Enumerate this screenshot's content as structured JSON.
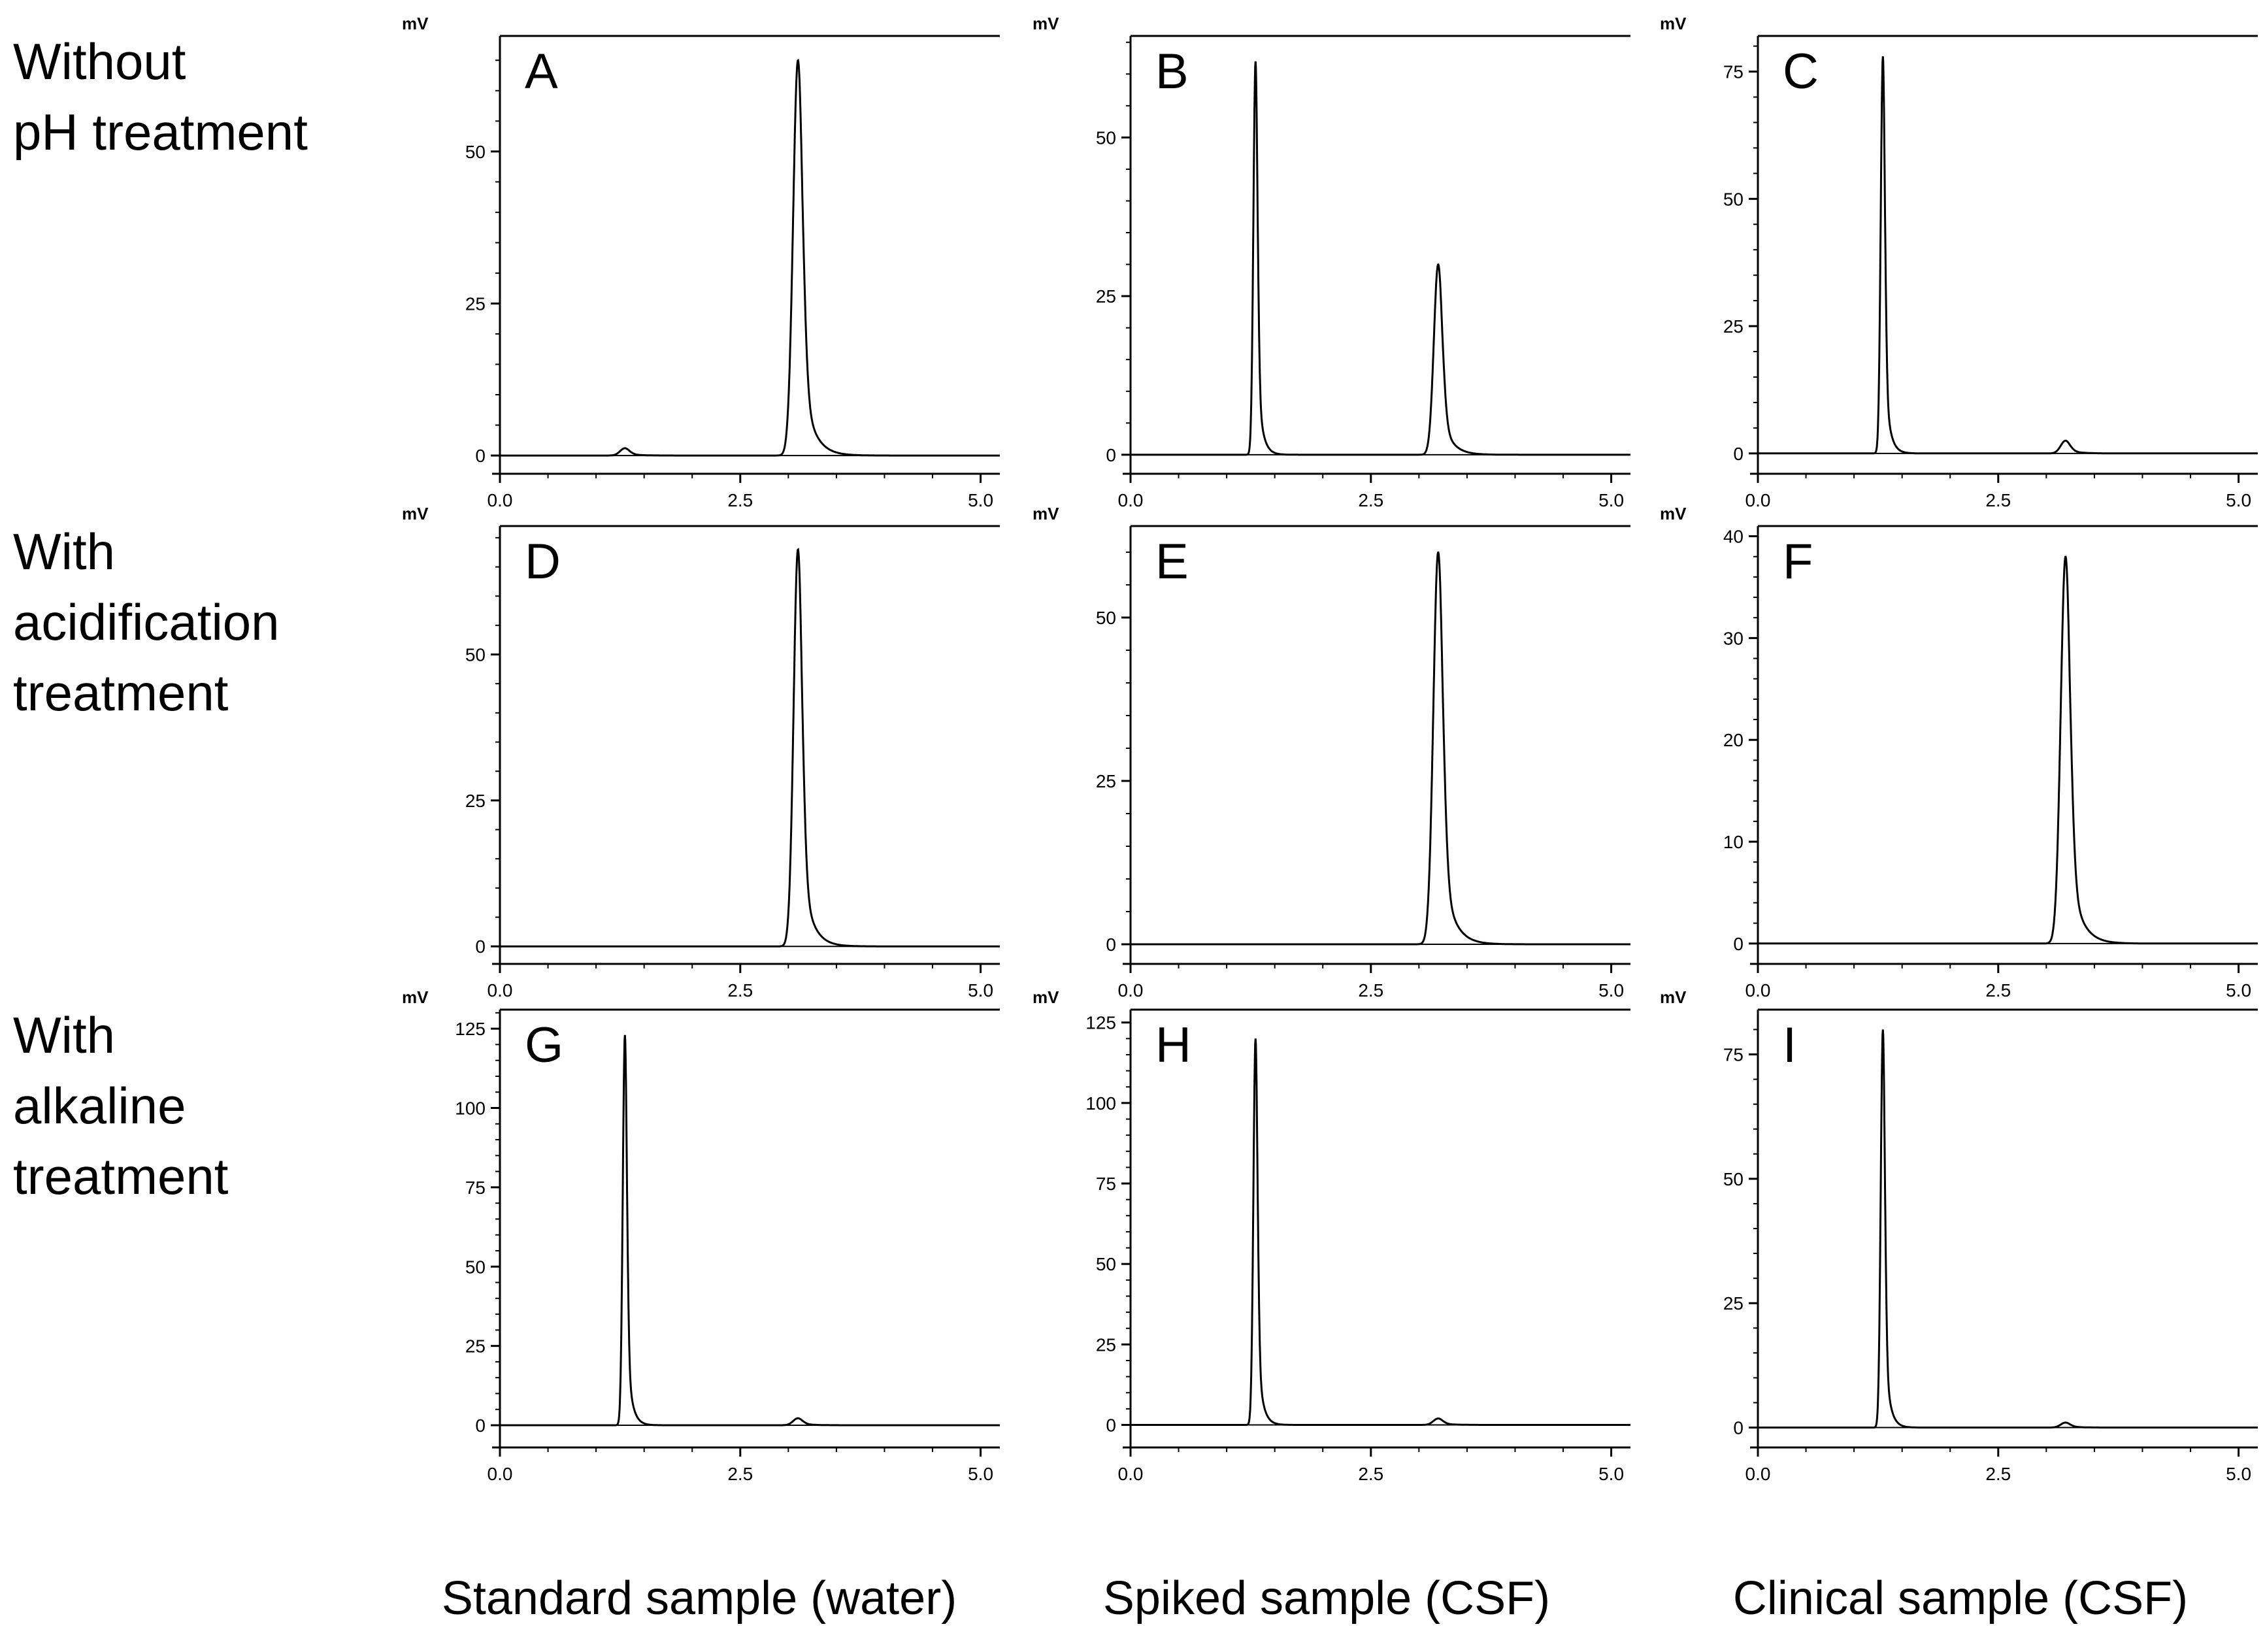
{
  "row_labels": [
    "Without\npH treatment",
    "With\nacidification\ntreatment",
    "With\nalkaline\ntreatment"
  ],
  "column_labels": [
    "Standard sample (water)",
    "Spiked sample (CSF)",
    "Clinical sample (CSF)"
  ],
  "chart_data": [
    {
      "panel": "A",
      "type": "line",
      "ylabel": "mV",
      "ymax": 65,
      "ylim": [
        -3,
        69
      ],
      "yticks": [
        0,
        25,
        50
      ],
      "xticks": [
        "0.0",
        "2.5",
        "5.0"
      ],
      "xlim": [
        0,
        5.2
      ],
      "peaks": [
        {
          "t": 1.3,
          "h": 1.2,
          "w": 0.05
        },
        {
          "t": 3.1,
          "h": 65,
          "w": 0.05
        }
      ]
    },
    {
      "panel": "B",
      "type": "line",
      "ylabel": "mV",
      "ymax": 62,
      "ylim": [
        -3,
        66
      ],
      "yticks": [
        0,
        25,
        50
      ],
      "xticks": [
        "0.0",
        "2.5",
        "5.0"
      ],
      "xlim": [
        0,
        5.2
      ],
      "peaks": [
        {
          "t": 1.3,
          "h": 62,
          "w": 0.022
        },
        {
          "t": 3.2,
          "h": 30,
          "w": 0.045
        }
      ]
    },
    {
      "panel": "C",
      "type": "line",
      "ylabel": "mV",
      "ymax": 78,
      "ylim": [
        -4,
        82
      ],
      "yticks": [
        0,
        25,
        50,
        75
      ],
      "xticks": [
        "0.0",
        "2.5",
        "5.0"
      ],
      "xlim": [
        0,
        5.2
      ],
      "peaks": [
        {
          "t": 1.3,
          "h": 78,
          "w": 0.022
        },
        {
          "t": 3.2,
          "h": 2.5,
          "w": 0.05
        }
      ]
    },
    {
      "panel": "D",
      "type": "line",
      "ylabel": "mV",
      "ymax": 68,
      "ylim": [
        -3,
        72
      ],
      "yticks": [
        0,
        25,
        50
      ],
      "xticks": [
        "0.0",
        "2.5",
        "5.0"
      ],
      "xlim": [
        0,
        5.2
      ],
      "peaks": [
        {
          "t": 3.1,
          "h": 68,
          "w": 0.045
        }
      ]
    },
    {
      "panel": "E",
      "type": "line",
      "ylabel": "mV",
      "ymax": 60,
      "ylim": [
        -3,
        64
      ],
      "yticks": [
        0,
        25,
        50
      ],
      "xticks": [
        "0.0",
        "2.5",
        "5.0"
      ],
      "xlim": [
        0,
        5.2
      ],
      "peaks": [
        {
          "t": 3.2,
          "h": 60,
          "w": 0.05
        }
      ]
    },
    {
      "panel": "F",
      "type": "line",
      "ylabel": "mV",
      "ymax": 38,
      "ylim": [
        -2,
        41
      ],
      "yticks": [
        0,
        10,
        20,
        30,
        40
      ],
      "xticks": [
        "0.0",
        "2.5",
        "5.0"
      ],
      "xlim": [
        0,
        5.2
      ],
      "peaks": [
        {
          "t": 3.2,
          "h": 38,
          "w": 0.05
        }
      ]
    },
    {
      "panel": "G",
      "type": "line",
      "ylabel": "mV",
      "ymax": 123,
      "ylim": [
        -7,
        131
      ],
      "yticks": [
        0,
        25,
        50,
        75,
        100,
        125
      ],
      "xticks": [
        "0.0",
        "2.5",
        "5.0"
      ],
      "xlim": [
        0,
        5.2
      ],
      "peaks": [
        {
          "t": 1.3,
          "h": 123,
          "w": 0.022
        },
        {
          "t": 3.1,
          "h": 2.2,
          "w": 0.05
        }
      ]
    },
    {
      "panel": "H",
      "type": "line",
      "ylabel": "mV",
      "ymax": 120,
      "ylim": [
        -7,
        129
      ],
      "yticks": [
        0,
        25,
        50,
        75,
        100,
        125
      ],
      "xticks": [
        "0.0",
        "2.5",
        "5.0"
      ],
      "xlim": [
        0,
        5.2
      ],
      "peaks": [
        {
          "t": 1.3,
          "h": 120,
          "w": 0.022
        },
        {
          "t": 3.2,
          "h": 2,
          "w": 0.05
        }
      ]
    },
    {
      "panel": "I",
      "type": "line",
      "ylabel": "mV",
      "ymax": 80,
      "ylim": [
        -4,
        84
      ],
      "yticks": [
        0,
        25,
        50,
        75
      ],
      "xticks": [
        "0.0",
        "2.5",
        "5.0"
      ],
      "xlim": [
        0,
        5.2
      ],
      "peaks": [
        {
          "t": 1.3,
          "h": 80,
          "w": 0.022
        },
        {
          "t": 3.2,
          "h": 1,
          "w": 0.05
        }
      ]
    }
  ]
}
